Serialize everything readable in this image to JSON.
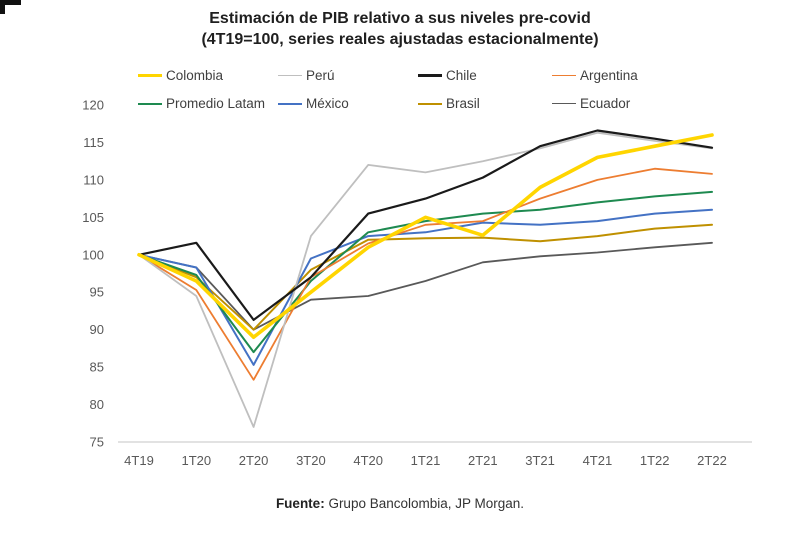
{
  "title": {
    "line1": "Estimación de PIB relativo a sus niveles pre-covid",
    "line2": "(4T19=100, series reales ajustadas estacionalmente)"
  },
  "footer": {
    "label": "Fuente:",
    "text": " Grupo Bancolombia, JP Morgan."
  },
  "chart_data": {
    "type": "line",
    "title": "Estimación de PIB relativo a sus niveles pre-covid (4T19=100, series reales ajustadas estacionalmente)",
    "categories": [
      "4T19",
      "1T20",
      "2T20",
      "3T20",
      "4T20",
      "1T21",
      "2T21",
      "3T21",
      "4T21",
      "1T22",
      "2T22"
    ],
    "y_ticks": [
      75,
      80,
      85,
      90,
      95,
      100,
      105,
      110,
      115,
      120
    ],
    "ylim": [
      75,
      120
    ],
    "grid": false,
    "legend_position": "top",
    "axis_color": "#d9d9d9",
    "tick_label_color": "#595959",
    "series": [
      {
        "name": "Colombia",
        "color": "#FFD500",
        "width": 3.6,
        "values": [
          100,
          96.5,
          89,
          95,
          101,
          105,
          102.6,
          109,
          113,
          114.5,
          116
        ]
      },
      {
        "name": "Perú",
        "color": "#BFBFBF",
        "width": 1.8,
        "values": [
          100,
          94.5,
          77,
          102.5,
          112,
          111,
          112.5,
          114.2,
          116.3,
          115.2,
          114.2
        ]
      },
      {
        "name": "Chile",
        "color": "#1A1A1A",
        "width": 2.2,
        "values": [
          100,
          101.6,
          91.3,
          97,
          105.5,
          107.5,
          110.3,
          114.5,
          116.6,
          115.5,
          114.3
        ]
      },
      {
        "name": "Argentina",
        "color": "#ED7D31",
        "width": 1.8,
        "values": [
          100,
          95.3,
          83.3,
          97,
          101.5,
          104,
          104.5,
          107.5,
          110,
          111.5,
          110.8
        ]
      },
      {
        "name": "Promedio Latam",
        "color": "#1E8A50",
        "width": 2,
        "values": [
          100,
          97.3,
          87,
          96.5,
          103,
          104.5,
          105.5,
          106,
          107,
          107.8,
          108.4
        ]
      },
      {
        "name": "México",
        "color": "#4472C4",
        "width": 2,
        "values": [
          100,
          98.3,
          85.3,
          99.5,
          102.5,
          103,
          104.3,
          104,
          104.5,
          105.5,
          106
        ]
      },
      {
        "name": "Brasil",
        "color": "#BF9000",
        "width": 2,
        "values": [
          100,
          97,
          90,
          98,
          102,
          102.2,
          102.3,
          101.8,
          102.5,
          103.5,
          104
        ]
      },
      {
        "name": "Ecuador",
        "color": "#595959",
        "width": 1.8,
        "values": [
          100,
          98.3,
          90,
          94,
          94.5,
          96.5,
          99,
          99.8,
          100.3,
          101,
          101.6
        ]
      }
    ]
  }
}
